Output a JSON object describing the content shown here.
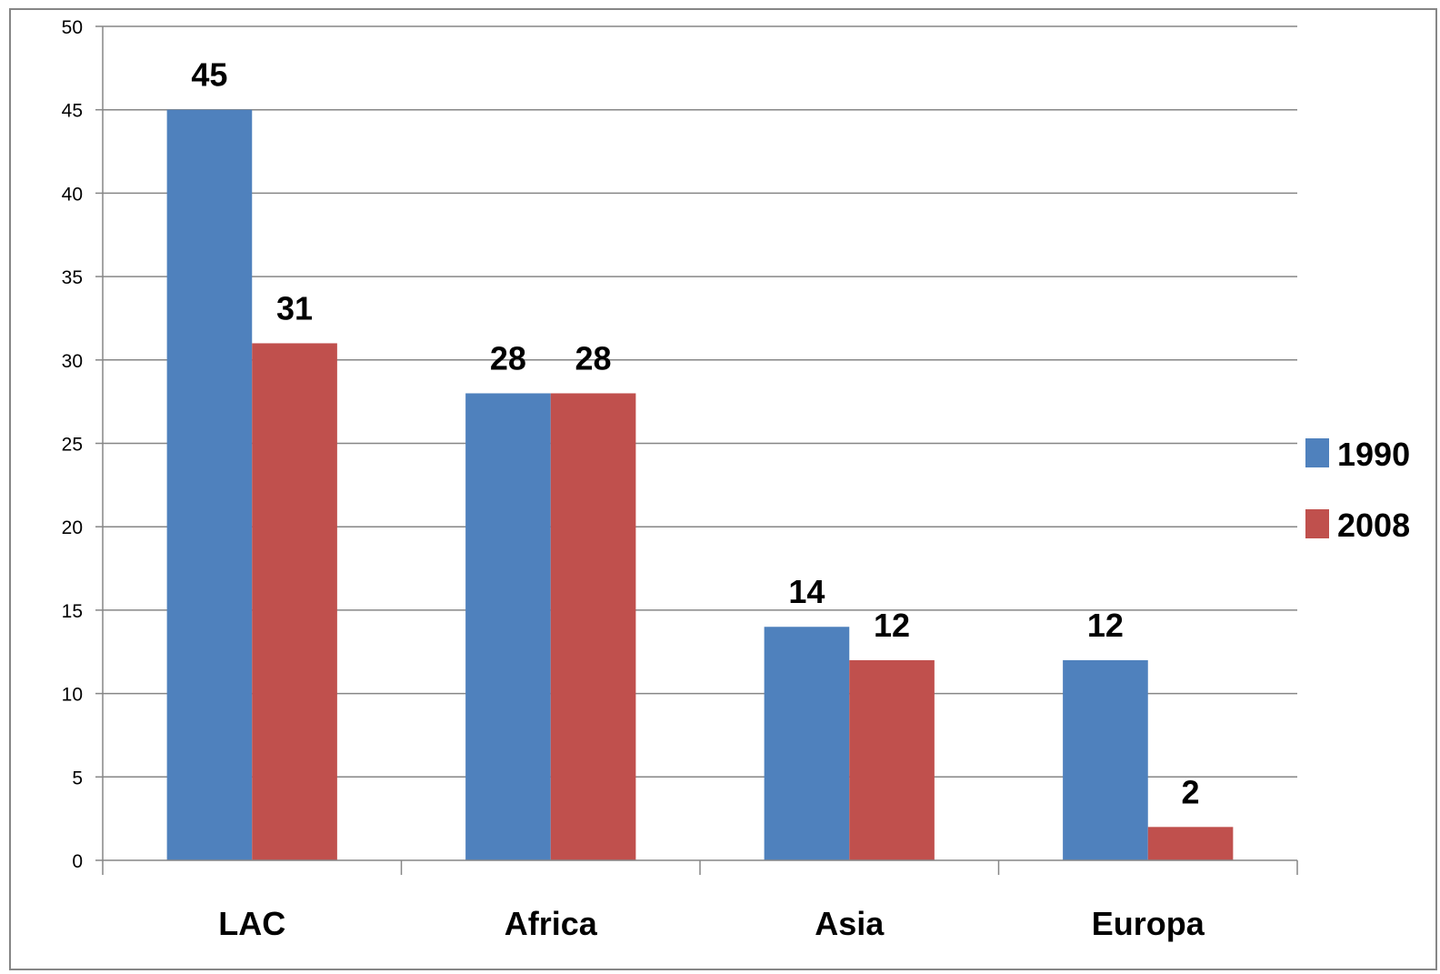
{
  "chart_data": {
    "type": "bar",
    "title": "",
    "xlabel": "",
    "ylabel": "",
    "categories": [
      "LAC",
      "Africa",
      "Asia",
      "Europa"
    ],
    "series": [
      {
        "name": "1990",
        "values": [
          45,
          28,
          14,
          12
        ],
        "color": "#4F81BD"
      },
      {
        "name": "2008",
        "values": [
          31,
          28,
          12,
          2
        ],
        "color": "#C0504D"
      }
    ],
    "ylim": [
      0,
      50
    ],
    "yticks": [
      0,
      5,
      10,
      15,
      20,
      25,
      30,
      35,
      40,
      45,
      50
    ],
    "grid": true,
    "legend_position": "right",
    "data_labels": true
  }
}
